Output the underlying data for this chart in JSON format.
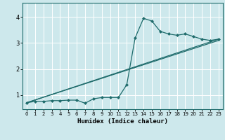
{
  "xlabel": "Humidex (Indice chaleur)",
  "bg_color": "#cde8ec",
  "line_color": "#1e6b6b",
  "grid_color": "#ffffff",
  "xlim": [
    -0.5,
    23.5
  ],
  "ylim": [
    0.45,
    4.55
  ],
  "yticks": [
    1,
    2,
    3,
    4
  ],
  "xticks": [
    0,
    1,
    2,
    3,
    4,
    5,
    6,
    7,
    8,
    9,
    10,
    11,
    12,
    13,
    14,
    15,
    16,
    17,
    18,
    19,
    20,
    21,
    22,
    23
  ],
  "series1_x": [
    0,
    1,
    2,
    3,
    4,
    5,
    6,
    7,
    8,
    9,
    10,
    11,
    12,
    13,
    14,
    15,
    16,
    17,
    18,
    19,
    20,
    21,
    22,
    23
  ],
  "series1_y": [
    0.7,
    0.75,
    0.75,
    0.78,
    0.78,
    0.8,
    0.8,
    0.68,
    0.85,
    0.9,
    0.9,
    0.9,
    1.4,
    3.2,
    3.95,
    3.85,
    3.45,
    3.35,
    3.3,
    3.35,
    3.25,
    3.15,
    3.1,
    3.15
  ],
  "series2_x": [
    0,
    23
  ],
  "series2_y": [
    0.7,
    3.15
  ],
  "series3_x": [
    0,
    23
  ],
  "series3_y": [
    0.7,
    3.15
  ],
  "marker": "D",
  "marker_size": 2.0,
  "linewidth": 0.9
}
